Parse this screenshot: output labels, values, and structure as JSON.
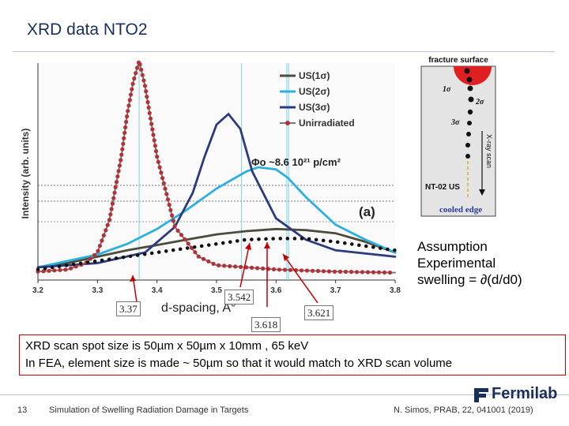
{
  "slide": {
    "title": "XRD data NTO2",
    "page_number": "13",
    "footer_text": "Simulation of Swelling Radiation Damage in Targets",
    "citation": "N. Simos, PRAB, 22, 041001 (2019)",
    "logo_text": "Fermilab"
  },
  "annotations": {
    "callout_1": "3.37",
    "callout_2": "3.542",
    "callout_3": "3.618",
    "callout_4": "3.621",
    "xlabel_overlay": "d-spacing, A°"
  },
  "assumption": {
    "line1": "Assumption",
    "line2": "Experimental",
    "line3": "swelling = ∂(d/d0)"
  },
  "info": {
    "line1": "XRD scan spot size is 50µm x 50µm x 10mm , 65 keV",
    "line2": "In FEA, element size is made ~ 50µm so that it would match to XRD scan volume"
  },
  "inset": {
    "title": "fracture surface",
    "sigma1": "1σ",
    "sigma2": "2σ",
    "sigma3": "3σ",
    "scan_label": "X-ray scan",
    "sample_label": "NT-02 US",
    "bottom_label": "cooled edge"
  },
  "chart_data": {
    "type": "line",
    "title": "",
    "xlabel": "d-spacing, A°",
    "ylabel": "Intensity (arb. units)",
    "xlim": [
      3.2,
      3.8
    ],
    "ylim": [
      0,
      100
    ],
    "x_ticks": [
      "3.2",
      "3.3",
      "3.4",
      "3.5",
      "3.6",
      "3.7",
      "3.8"
    ],
    "annotation": "Φo ~8.6 10²¹ p/cm²",
    "panel_label": "(a)",
    "legend": [
      "US(1σ)",
      "US(2σ)",
      "US(3σ)",
      "Unirradiated"
    ],
    "series": [
      {
        "name": "US(1σ)",
        "color": "#4d4b3a",
        "x": [
          3.2,
          3.25,
          3.3,
          3.35,
          3.4,
          3.45,
          3.5,
          3.55,
          3.6,
          3.65,
          3.7,
          3.75,
          3.8
        ],
        "y": [
          3,
          5,
          8,
          11,
          13.5,
          16,
          18.5,
          20,
          21,
          20.5,
          19,
          15,
          10
        ]
      },
      {
        "name": "US(2σ)",
        "color": "#2bb0e0",
        "x": [
          3.2,
          3.25,
          3.3,
          3.35,
          3.4,
          3.45,
          3.5,
          3.55,
          3.57,
          3.6,
          3.62,
          3.65,
          3.7,
          3.75,
          3.8
        ],
        "y": [
          3,
          6,
          9,
          14,
          21,
          30,
          40,
          48,
          50,
          49,
          45,
          36,
          23,
          16,
          10
        ]
      },
      {
        "name": "US(3σ)",
        "color": "#2e3a80",
        "x": [
          3.2,
          3.3,
          3.38,
          3.43,
          3.46,
          3.48,
          3.5,
          3.52,
          3.54,
          3.56,
          3.6,
          3.65,
          3.7,
          3.8
        ],
        "y": [
          3,
          5,
          10,
          22,
          38,
          55,
          70,
          75,
          68,
          48,
          26,
          16,
          11,
          8
        ]
      },
      {
        "name": "Unirradiated",
        "color": "#b3323a",
        "x": [
          3.2,
          3.25,
          3.28,
          3.3,
          3.32,
          3.34,
          3.35,
          3.36,
          3.37,
          3.38,
          3.4,
          3.43,
          3.47,
          3.5,
          3.6,
          3.7,
          3.8
        ],
        "y": [
          1,
          2,
          5,
          10,
          25,
          55,
          75,
          90,
          100,
          88,
          55,
          22,
          8,
          4,
          2,
          1,
          0.5
        ]
      },
      {
        "name": "US dotted",
        "color": "#111111",
        "x": [
          3.2,
          3.3,
          3.4,
          3.45,
          3.5,
          3.55,
          3.6,
          3.65,
          3.7,
          3.75,
          3.8
        ],
        "y": [
          2,
          6,
          10,
          12,
          14,
          16,
          16.5,
          16.5,
          15,
          13,
          11
        ]
      }
    ],
    "reference_lines_x": [
      3.37,
      3.542,
      3.618,
      3.621
    ]
  }
}
